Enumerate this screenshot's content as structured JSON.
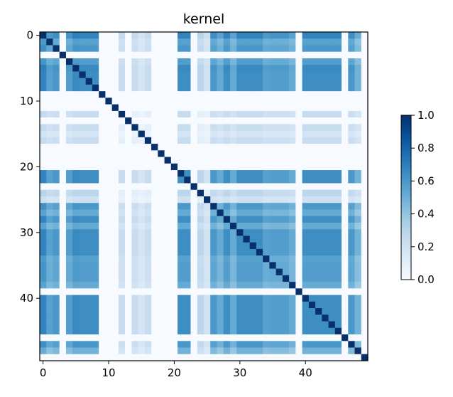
{
  "chart_data": {
    "type": "heatmap",
    "title": "kernel",
    "xlabel": "",
    "ylabel": "",
    "size": 50,
    "x_ticks": [
      0,
      10,
      20,
      30,
      40
    ],
    "y_ticks": [
      0,
      10,
      20,
      30,
      40
    ],
    "colormap": "Blues",
    "colorbar": {
      "range": [
        0,
        1
      ],
      "ticks": [
        "0.0",
        "0.2",
        "0.4",
        "0.6",
        "0.8",
        "1.0"
      ]
    },
    "diagonal_value": 1.0,
    "description_rule": "off-diagonal value = weight[i] * weight[j]; weight 0 rows/columns are blank",
    "weights": [
      0.85,
      0.7,
      0.75,
      0.0,
      0.72,
      0.82,
      0.8,
      0.8,
      0.8,
      0.0,
      0.0,
      0.0,
      0.3,
      0.0,
      0.3,
      0.22,
      0.3,
      0.0,
      0.0,
      0.0,
      0.0,
      0.8,
      0.8,
      0.0,
      0.35,
      0.25,
      0.75,
      0.65,
      0.8,
      0.65,
      0.8,
      0.8,
      0.8,
      0.8,
      0.7,
      0.72,
      0.72,
      0.72,
      0.65,
      0.0,
      0.8,
      0.8,
      0.8,
      0.8,
      0.8,
      0.8,
      0.0,
      0.75,
      0.6,
      0.0
    ],
    "grid": false
  }
}
